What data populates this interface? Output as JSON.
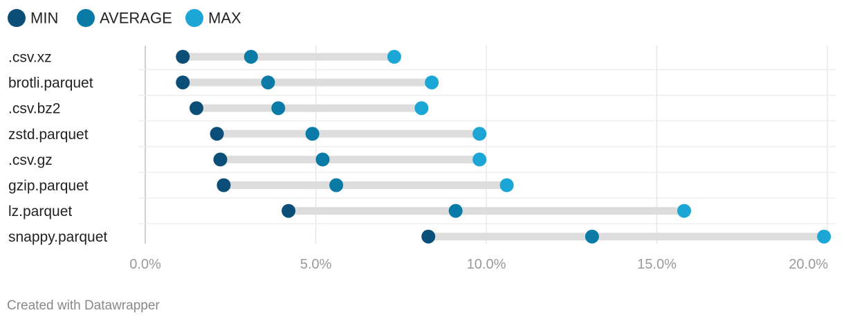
{
  "chart_data": {
    "type": "dot-range",
    "series": [
      {
        "name": "MIN",
        "color": "#0b4f78"
      },
      {
        "name": "AVERAGE",
        "color": "#0a7aa6"
      },
      {
        "name": "MAX",
        "color": "#1ca6d6"
      }
    ],
    "categories": [
      ".csv.xz",
      "brotli.parquet",
      ".csv.bz2",
      "zstd.parquet",
      ".csv.gz",
      "gzip.parquet",
      "lz.parquet",
      "snappy.parquet"
    ],
    "values": [
      {
        "min": 1.1,
        "average": 3.1,
        "max": 7.3
      },
      {
        "min": 1.1,
        "average": 3.6,
        "max": 8.4
      },
      {
        "min": 1.5,
        "average": 3.9,
        "max": 8.1
      },
      {
        "min": 2.1,
        "average": 4.9,
        "max": 9.8
      },
      {
        "min": 2.2,
        "average": 5.2,
        "max": 9.8
      },
      {
        "min": 2.3,
        "average": 5.6,
        "max": 10.6
      },
      {
        "min": 4.2,
        "average": 9.1,
        "max": 15.8
      },
      {
        "min": 8.3,
        "average": 13.1,
        "max": 19.9
      }
    ],
    "xlim": [
      0,
      20
    ],
    "ticks": [
      0,
      5,
      10,
      15,
      20
    ],
    "tick_labels": [
      "0.0%",
      "5.0%",
      "10.0%",
      "15.0%",
      "20.0%"
    ],
    "legend_position": "top-left",
    "grid": true,
    "range_bar_color": "#dddddd",
    "gridline_color": "#e2e2e2"
  },
  "credit": "Created with Datawrapper"
}
